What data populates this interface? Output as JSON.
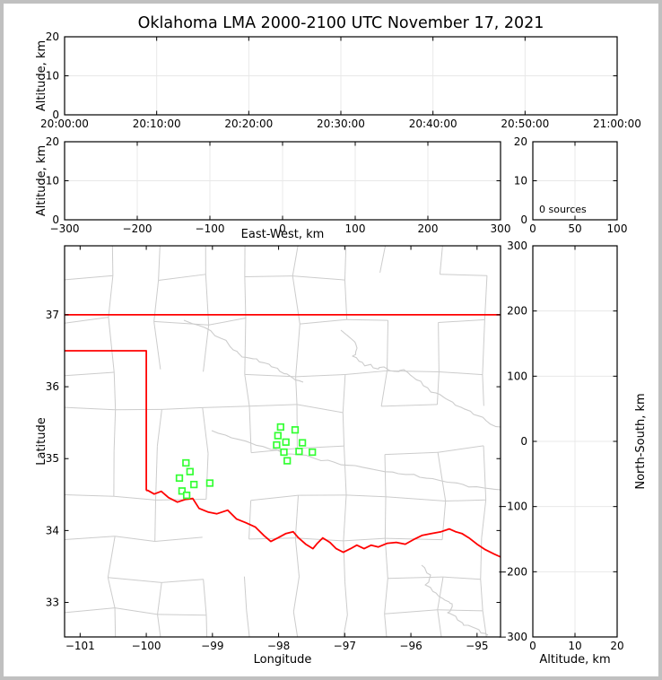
{
  "title": "Oklahoma LMA 2000-2100 UTC November 17, 2021",
  "colors": {
    "figure_border": "#c0c0c0",
    "axis": "#000000",
    "gridline": "#e8e8e8",
    "county_lines": "#cccccc",
    "state_border": "#ff0000",
    "station_marker": "#33ff33"
  },
  "chart_data": {
    "type": "scatter",
    "figure_kind": "XLMA-style multi-panel LMA source display",
    "sources_count": 0,
    "panels": {
      "time_height": {
        "type": "scatter",
        "ylabel": "Altitude, km",
        "xticks": [
          "20:00:00",
          "20:10:00",
          "20:20:00",
          "20:30:00",
          "20:40:00",
          "20:50:00",
          "21:00:00"
        ],
        "yticks": [
          0,
          10,
          20
        ],
        "ylim": [
          0,
          20
        ],
        "points": []
      },
      "ew_height": {
        "type": "scatter",
        "xlabel": "East-West, km",
        "ylabel": "Altitude, km",
        "xticks": [
          -300,
          -200,
          -100,
          0,
          100,
          200,
          300
        ],
        "yticks": [
          0,
          10,
          20
        ],
        "xlim": [
          -300,
          300
        ],
        "ylim": [
          0,
          20
        ],
        "points": []
      },
      "alt_histogram": {
        "type": "line",
        "annotation": "0 sources",
        "xticks": [
          0,
          50,
          100
        ],
        "yticks": [
          0,
          10,
          20
        ],
        "xlim": [
          0,
          100
        ],
        "ylim": [
          0,
          20
        ],
        "points": []
      },
      "plan_view": {
        "type": "scatter",
        "xlabel": "Longitude",
        "ylabel": "Latitude",
        "xticks": [
          -101,
          -100,
          -99,
          -98,
          -97,
          -96,
          -95
        ],
        "yticks": [
          33,
          34,
          35,
          36,
          37
        ],
        "xlim": [
          -101.235,
          -94.645
        ],
        "ylim": [
          32.52,
          37.96
        ],
        "points": [],
        "stations": [
          [
            -99.4,
            34.94
          ],
          [
            -99.34,
            34.82
          ],
          [
            -99.5,
            34.73
          ],
          [
            -99.28,
            34.64
          ],
          [
            -99.04,
            34.66
          ],
          [
            -99.46,
            34.55
          ],
          [
            -99.39,
            34.49
          ],
          [
            -97.97,
            35.44
          ],
          [
            -97.75,
            35.4
          ],
          [
            -98.01,
            35.32
          ],
          [
            -97.89,
            35.23
          ],
          [
            -98.03,
            35.19
          ],
          [
            -97.64,
            35.22
          ],
          [
            -97.92,
            35.09
          ],
          [
            -97.69,
            35.1
          ],
          [
            -97.49,
            35.09
          ],
          [
            -97.87,
            34.97
          ]
        ],
        "state_border": {
          "kansas_oklahoma": [
            [
              -101.235,
              37.0
            ],
            [
              -94.645,
              37.0
            ]
          ],
          "oklahoma_missouri": [
            [
              -94.64,
              37.0
            ],
            [
              -94.64,
              36.45
            ]
          ],
          "panhandle_texas": [
            [
              -101.235,
              36.5
            ],
            [
              -100.0,
              36.5
            ],
            [
              -100.0,
              34.557
            ]
          ],
          "red_river": [
            [
              -100.0,
              34.557
            ],
            [
              -99.976,
              34.557
            ],
            [
              -99.881,
              34.508
            ],
            [
              -99.773,
              34.545
            ],
            [
              -99.664,
              34.458
            ],
            [
              -99.529,
              34.395
            ],
            [
              -99.407,
              34.433
            ],
            [
              -99.298,
              34.445
            ],
            [
              -99.203,
              34.308
            ],
            [
              -99.068,
              34.258
            ],
            [
              -98.932,
              34.233
            ],
            [
              -98.769,
              34.283
            ],
            [
              -98.634,
              34.159
            ],
            [
              -98.498,
              34.109
            ],
            [
              -98.349,
              34.047
            ],
            [
              -98.213,
              33.922
            ],
            [
              -98.118,
              33.847
            ],
            [
              -98.01,
              33.897
            ],
            [
              -97.888,
              33.959
            ],
            [
              -97.78,
              33.984
            ],
            [
              -97.698,
              33.897
            ],
            [
              -97.59,
              33.81
            ],
            [
              -97.481,
              33.748
            ],
            [
              -97.414,
              33.822
            ],
            [
              -97.332,
              33.897
            ],
            [
              -97.224,
              33.835
            ],
            [
              -97.129,
              33.748
            ],
            [
              -97.02,
              33.698
            ],
            [
              -96.912,
              33.748
            ],
            [
              -96.817,
              33.797
            ],
            [
              -96.708,
              33.748
            ],
            [
              -96.6,
              33.797
            ],
            [
              -96.492,
              33.772
            ],
            [
              -96.356,
              33.822
            ],
            [
              -96.22,
              33.835
            ],
            [
              -96.085,
              33.81
            ],
            [
              -95.963,
              33.872
            ],
            [
              -95.827,
              33.934
            ],
            [
              -95.691,
              33.959
            ],
            [
              -95.542,
              33.984
            ],
            [
              -95.42,
              34.022
            ],
            [
              -95.325,
              33.984
            ],
            [
              -95.23,
              33.959
            ],
            [
              -95.122,
              33.897
            ],
            [
              -95.0,
              33.81
            ],
            [
              -94.878,
              33.735
            ],
            [
              -94.742,
              33.673
            ],
            [
              -94.62,
              33.623
            ]
          ]
        }
      },
      "ns_height": {
        "type": "scatter",
        "xlabel": "Altitude, km",
        "ylabel": "North-South, km",
        "xticks": [
          0,
          10,
          20
        ],
        "yticks": [
          -300,
          -200,
          -100,
          0,
          100,
          200,
          300
        ],
        "xlim": [
          0,
          20
        ],
        "ylim": [
          -300,
          300
        ],
        "points": []
      }
    }
  }
}
